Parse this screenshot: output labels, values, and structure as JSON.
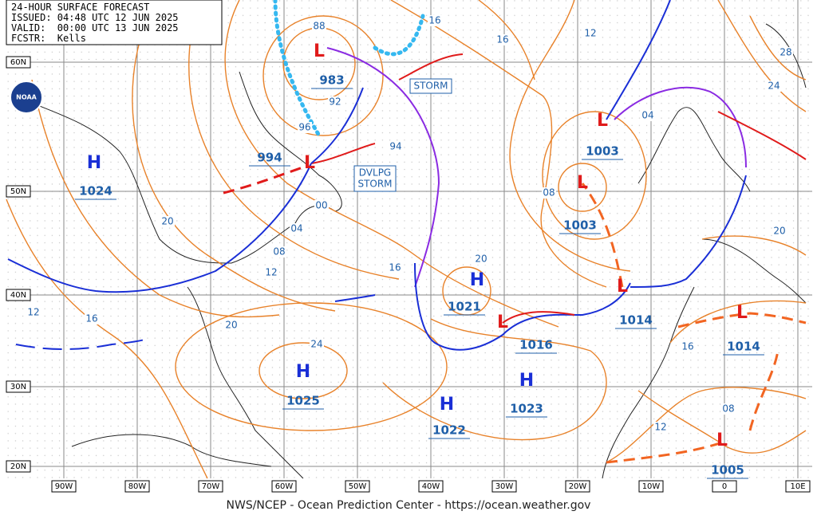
{
  "header": {
    "title": "24-HOUR SURFACE FORECAST",
    "issued": "ISSUED: 04:48 UTC 12 JUN 2025",
    "valid": "VALID:  00:00 UTC 13 JUN 2025",
    "forecaster": "FCSTR:  Kells"
  },
  "logo": "NOAA",
  "latitudes": [
    "60N",
    "50N",
    "40N",
    "30N",
    "20N"
  ],
  "longitudes": [
    "90W",
    "80W",
    "70W",
    "60W",
    "50W",
    "40W",
    "30W",
    "20W",
    "10W",
    "0",
    "10E"
  ],
  "centers": [
    {
      "symbol": "H",
      "pressure": 1024
    },
    {
      "symbol": "H",
      "pressure": 1025
    },
    {
      "symbol": "H",
      "pressure": 1022
    },
    {
      "symbol": "H",
      "pressure": 1023
    },
    {
      "symbol": "H",
      "pressure": 1021
    },
    {
      "symbol": "L",
      "pressure": 983
    },
    {
      "symbol": "L",
      "pressure": 994
    },
    {
      "symbol": "L",
      "pressure": 1003
    },
    {
      "symbol": "L",
      "pressure": 1003
    },
    {
      "symbol": "L",
      "pressure": 1014
    },
    {
      "symbol": "L",
      "pressure": 1016
    },
    {
      "symbol": "L",
      "pressure": 1014
    },
    {
      "symbol": "L",
      "pressure": 1005
    }
  ],
  "isobar_labels": [
    "88",
    "92",
    "96",
    "00",
    "04",
    "08",
    "12",
    "16",
    "20",
    "20",
    "24",
    "16",
    "12",
    "16",
    "16",
    "12",
    "28",
    "24",
    "04",
    "08",
    "20",
    "20",
    "16",
    "12",
    "08",
    "94"
  ],
  "boxed_labels": [
    [
      "STORM"
    ],
    [
      "DVLPG",
      "STORM"
    ]
  ],
  "footer": "NWS/NCEP - Ocean Prediction Center - https://ocean.weather.gov"
}
